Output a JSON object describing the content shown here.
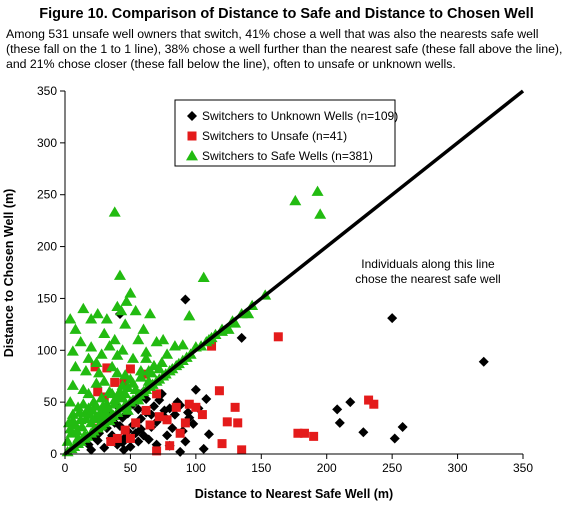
{
  "figure": {
    "title": "Figure 10. Comparison of Distance to Safe and Distance to Chosen Well",
    "caption": "Among 531 unsafe well owners that switch,  41% chose a well that was also the nearests safe well (these fall on the 1 to 1 line), 38% chose a well further than the nearest safe (these fall above the line), and 21% chose closer (these fall below the line), often to unsafe or unknown wells."
  },
  "chart_data": {
    "type": "scatter",
    "xlabel": "Distance to Nearest Safe Well (m)",
    "ylabel": "Distance to Chosen Well (m)",
    "xlim": [
      0,
      350
    ],
    "ylim": [
      0,
      350
    ],
    "xticks": [
      "0",
      "50",
      "100",
      "150",
      "200",
      "250",
      "300",
      "350"
    ],
    "yticks": [
      "0",
      "50",
      "100",
      "150",
      "200",
      "250",
      "300",
      "350"
    ],
    "grid": false,
    "legend_position": "top-left",
    "reference_line": {
      "x": [
        0,
        350
      ],
      "y": [
        0,
        350
      ],
      "color": "#000000"
    },
    "annotation": [
      "Individuals along this line",
      "chose the nearest safe well"
    ],
    "series": [
      {
        "name": "Switchers to Unknown Wells (n=109)",
        "marker": "diamond",
        "color": "#000000",
        "points": [
          [
            92,
            149
          ],
          [
            250,
            131
          ],
          [
            135,
            112
          ],
          [
            320,
            89
          ],
          [
            42,
            135
          ],
          [
            208,
            43
          ],
          [
            218,
            50
          ],
          [
            228,
            21
          ],
          [
            258,
            26
          ],
          [
            252,
            15
          ],
          [
            108,
            53
          ],
          [
            102,
            44
          ],
          [
            95,
            35
          ],
          [
            90,
            22
          ],
          [
            110,
            19
          ],
          [
            86,
            50
          ],
          [
            80,
            44
          ],
          [
            75,
            37
          ],
          [
            70,
            31
          ],
          [
            66,
            26
          ],
          [
            60,
            18
          ],
          [
            56,
            12
          ],
          [
            50,
            7
          ],
          [
            45,
            4
          ],
          [
            40,
            9
          ],
          [
            35,
            15
          ],
          [
            30,
            6
          ],
          [
            25,
            13
          ],
          [
            20,
            4
          ],
          [
            18,
            9
          ],
          [
            26,
            20
          ],
          [
            32,
            25
          ],
          [
            38,
            30
          ],
          [
            44,
            35
          ],
          [
            48,
            22
          ],
          [
            52,
            28
          ],
          [
            58,
            34
          ],
          [
            62,
            40
          ],
          [
            68,
            46
          ],
          [
            72,
            52
          ],
          [
            76,
            42
          ],
          [
            84,
            38
          ],
          [
            88,
            47
          ],
          [
            94,
            40
          ],
          [
            98,
            29
          ],
          [
            82,
            25
          ],
          [
            78,
            18
          ],
          [
            64,
            14
          ],
          [
            54,
            20
          ],
          [
            46,
            16
          ],
          [
            36,
            18
          ],
          [
            28,
            26
          ],
          [
            22,
            17
          ],
          [
            42,
            27
          ],
          [
            56,
            43
          ],
          [
            74,
            58
          ],
          [
            62,
            53
          ],
          [
            100,
            62
          ],
          [
            106,
            5
          ],
          [
            88,
            2
          ],
          [
            70,
            9
          ],
          [
            48,
            39
          ],
          [
            40,
            46
          ],
          [
            34,
            36
          ],
          [
            52,
            48
          ],
          [
            66,
            38
          ],
          [
            58,
            24
          ],
          [
            44,
            11
          ],
          [
            80,
            8
          ],
          [
            92,
            12
          ],
          [
            60,
            60
          ],
          [
            210,
            30
          ]
        ]
      },
      {
        "name": "Switchers to Unsafe (n=41)",
        "marker": "square",
        "color": "#e41b1b",
        "points": [
          [
            163,
            113
          ],
          [
            112,
            104
          ],
          [
            23,
            84
          ],
          [
            32,
            83
          ],
          [
            50,
            82
          ],
          [
            60,
            77
          ],
          [
            38,
            69
          ],
          [
            25,
            60
          ],
          [
            30,
            55
          ],
          [
            45,
            68
          ],
          [
            70,
            58
          ],
          [
            118,
            61
          ],
          [
            95,
            48
          ],
          [
            100,
            45
          ],
          [
            124,
            31
          ],
          [
            130,
            45
          ],
          [
            132,
            30
          ],
          [
            135,
            4
          ],
          [
            178,
            20
          ],
          [
            183,
            20
          ],
          [
            190,
            17
          ],
          [
            232,
            52
          ],
          [
            236,
            48
          ],
          [
            72,
            36
          ],
          [
            78,
            33
          ],
          [
            54,
            30
          ],
          [
            40,
            15
          ],
          [
            35,
            12
          ],
          [
            70,
            3
          ],
          [
            80,
            8
          ],
          [
            120,
            10
          ],
          [
            88,
            20
          ],
          [
            24,
            25
          ],
          [
            28,
            35
          ],
          [
            46,
            23
          ],
          [
            65,
            28
          ],
          [
            92,
            30
          ],
          [
            105,
            38
          ],
          [
            85,
            45
          ],
          [
            62,
            42
          ],
          [
            50,
            15
          ]
        ]
      },
      {
        "name": "Switchers to Safe Wells (n=381)",
        "marker": "triangle",
        "color": "#22bb11",
        "points": [
          [
            38,
            233
          ],
          [
            193,
            253
          ],
          [
            176,
            244
          ],
          [
            195,
            231
          ],
          [
            42,
            172
          ],
          [
            106,
            170
          ],
          [
            50,
            155
          ],
          [
            153,
            153
          ],
          [
            47,
            147
          ],
          [
            43,
            138
          ],
          [
            40,
            142
          ],
          [
            54,
            138
          ],
          [
            65,
            135
          ],
          [
            95,
            133
          ],
          [
            4,
            130
          ],
          [
            8,
            120
          ],
          [
            14,
            140
          ],
          [
            20,
            130
          ],
          [
            25,
            135
          ],
          [
            32,
            130
          ],
          [
            46,
            125
          ],
          [
            60,
            120
          ],
          [
            75,
            110
          ],
          [
            90,
            105
          ],
          [
            100,
            103
          ],
          [
            110,
            110
          ],
          [
            120,
            118
          ],
          [
            130,
            126
          ],
          [
            140,
            135
          ],
          [
            125,
            120
          ],
          [
            56,
            110
          ],
          [
            70,
            108
          ],
          [
            38,
            110
          ],
          [
            30,
            116
          ],
          [
            20,
            103
          ],
          [
            12,
            108
          ],
          [
            6,
            99
          ],
          [
            18,
            92
          ],
          [
            28,
            96
          ],
          [
            40,
            95
          ],
          [
            52,
            92
          ],
          [
            62,
            98
          ],
          [
            8,
            84
          ],
          [
            16,
            80
          ],
          [
            26,
            78
          ],
          [
            36,
            84
          ],
          [
            46,
            76
          ],
          [
            58,
            80
          ],
          [
            68,
            85
          ],
          [
            6,
            66
          ],
          [
            14,
            62
          ],
          [
            24,
            68
          ],
          [
            34,
            60
          ],
          [
            44,
            66
          ],
          [
            54,
            62
          ],
          [
            64,
            70
          ],
          [
            4,
            50
          ],
          [
            10,
            45
          ],
          [
            16,
            40
          ],
          [
            22,
            50
          ],
          [
            30,
            42
          ],
          [
            38,
            48
          ],
          [
            48,
            42
          ],
          [
            56,
            52
          ],
          [
            3,
            30
          ],
          [
            8,
            28
          ],
          [
            12,
            33
          ],
          [
            20,
            30
          ],
          [
            26,
            36
          ],
          [
            34,
            32
          ],
          [
            5,
            20
          ],
          [
            10,
            15
          ],
          [
            15,
            18
          ],
          [
            22,
            22
          ],
          [
            28,
            28
          ],
          [
            36,
            38
          ],
          [
            42,
            44
          ],
          [
            50,
            50
          ],
          [
            60,
            60
          ],
          [
            70,
            70
          ],
          [
            80,
            80
          ],
          [
            90,
            90
          ],
          [
            96,
            96
          ],
          [
            104,
            104
          ],
          [
            115,
            115
          ],
          [
            135,
            135
          ],
          [
            5,
            5
          ],
          [
            10,
            10
          ],
          [
            15,
            15
          ],
          [
            20,
            20
          ],
          [
            25,
            25
          ],
          [
            30,
            30
          ],
          [
            35,
            35
          ],
          [
            40,
            40
          ],
          [
            45,
            45
          ],
          [
            55,
            55
          ],
          [
            65,
            65
          ],
          [
            75,
            75
          ],
          [
            85,
            85
          ],
          [
            93,
            93
          ],
          [
            108,
            108
          ],
          [
            112,
            112
          ],
          [
            120,
            120
          ],
          [
            128,
            128
          ],
          [
            143,
            143
          ],
          [
            2,
            2
          ],
          [
            7,
            7
          ],
          [
            12,
            12
          ],
          [
            17,
            17
          ],
          [
            27,
            27
          ],
          [
            32,
            32
          ],
          [
            37,
            37
          ],
          [
            47,
            47
          ],
          [
            52,
            52
          ],
          [
            57,
            57
          ],
          [
            62,
            62
          ],
          [
            67,
            67
          ],
          [
            72,
            72
          ],
          [
            77,
            77
          ],
          [
            82,
            82
          ],
          [
            87,
            87
          ],
          [
            24,
            88
          ],
          [
            34,
            104
          ],
          [
            44,
            100
          ],
          [
            62,
            92
          ],
          [
            78,
            96
          ],
          [
            84,
            104
          ],
          [
            30,
            70
          ],
          [
            40,
            78
          ],
          [
            50,
            72
          ],
          [
            64,
            80
          ],
          [
            74,
            88
          ],
          [
            18,
            58
          ],
          [
            28,
            54
          ],
          [
            36,
            58
          ],
          [
            42,
            60
          ],
          [
            46,
            58
          ],
          [
            6,
            38
          ],
          [
            14,
            48
          ],
          [
            18,
            44
          ],
          [
            24,
            46
          ],
          [
            32,
            48
          ],
          [
            40,
            56
          ],
          [
            2,
            12
          ],
          [
            4,
            24
          ],
          [
            6,
            32
          ],
          [
            9,
            22
          ],
          [
            11,
            40
          ],
          [
            13,
            26
          ],
          [
            16,
            34
          ],
          [
            19,
            38
          ],
          [
            21,
            42
          ],
          [
            23,
            34
          ],
          [
            27,
            40
          ],
          [
            29,
            46
          ],
          [
            31,
            38
          ],
          [
            33,
            44
          ],
          [
            38,
            52
          ],
          [
            44,
            54
          ],
          [
            48,
            64
          ],
          [
            52,
            68
          ],
          [
            58,
            74
          ],
          [
            66,
            78
          ],
          [
            72,
            82
          ]
        ]
      }
    ]
  }
}
